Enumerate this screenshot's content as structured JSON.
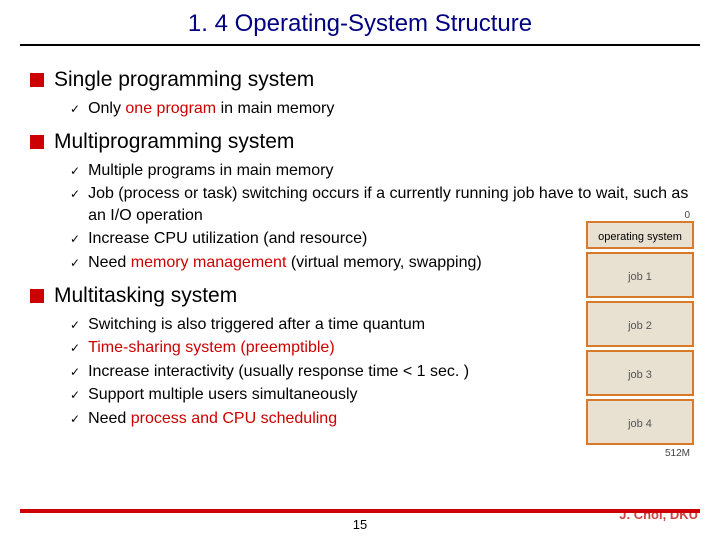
{
  "title": "1. 4 Operating-System Structure",
  "topics": [
    {
      "label": "Single programming system",
      "items": [
        {
          "segments": [
            {
              "text": "Only "
            },
            {
              "text": "one program",
              "hl": true
            },
            {
              "text": " in main memory"
            }
          ]
        }
      ]
    },
    {
      "label": "Multiprogramming system",
      "items": [
        {
          "segments": [
            {
              "text": "Multiple programs in main memory"
            }
          ]
        },
        {
          "segments": [
            {
              "text": "Job (process or task) switching occurs if a currently running job have to wait, such as an I/O operation"
            }
          ]
        },
        {
          "segments": [
            {
              "text": "Increase CPU utilization (and resource)"
            }
          ]
        },
        {
          "segments": [
            {
              "text": "Need "
            },
            {
              "text": "memory management",
              "hl": true
            },
            {
              "text": " (virtual memory, swapping)"
            }
          ]
        }
      ]
    },
    {
      "label": "Multitasking system",
      "items": [
        {
          "segments": [
            {
              "text": "Switching is also triggered after a time quantum"
            }
          ]
        },
        {
          "segments": [
            {
              "text": "Time-sharing system (preemptible)",
              "hl": true
            }
          ]
        },
        {
          "segments": [
            {
              "text": "Increase interactivity (usually response time < 1 sec. )"
            }
          ]
        },
        {
          "segments": [
            {
              "text": "Support multiple users simultaneously"
            }
          ]
        },
        {
          "segments": [
            {
              "text": "Need "
            },
            {
              "text": "process and CPU scheduling",
              "hl": true
            }
          ]
        }
      ]
    }
  ],
  "diagram": {
    "topLabel": "0",
    "os": "operating system",
    "jobs": [
      "job 1",
      "job 2",
      "job 3",
      "job 4"
    ],
    "bottomLabel": "512M",
    "border_color": "#d87a2a",
    "fill_color": "#e8e0d0"
  },
  "pageNumber": "15",
  "author": "J. Choi, DKU",
  "colors": {
    "title": "#000080",
    "highlight": "#cc0000",
    "bullet": "#cc0000",
    "footerLine": "#cc0000"
  }
}
